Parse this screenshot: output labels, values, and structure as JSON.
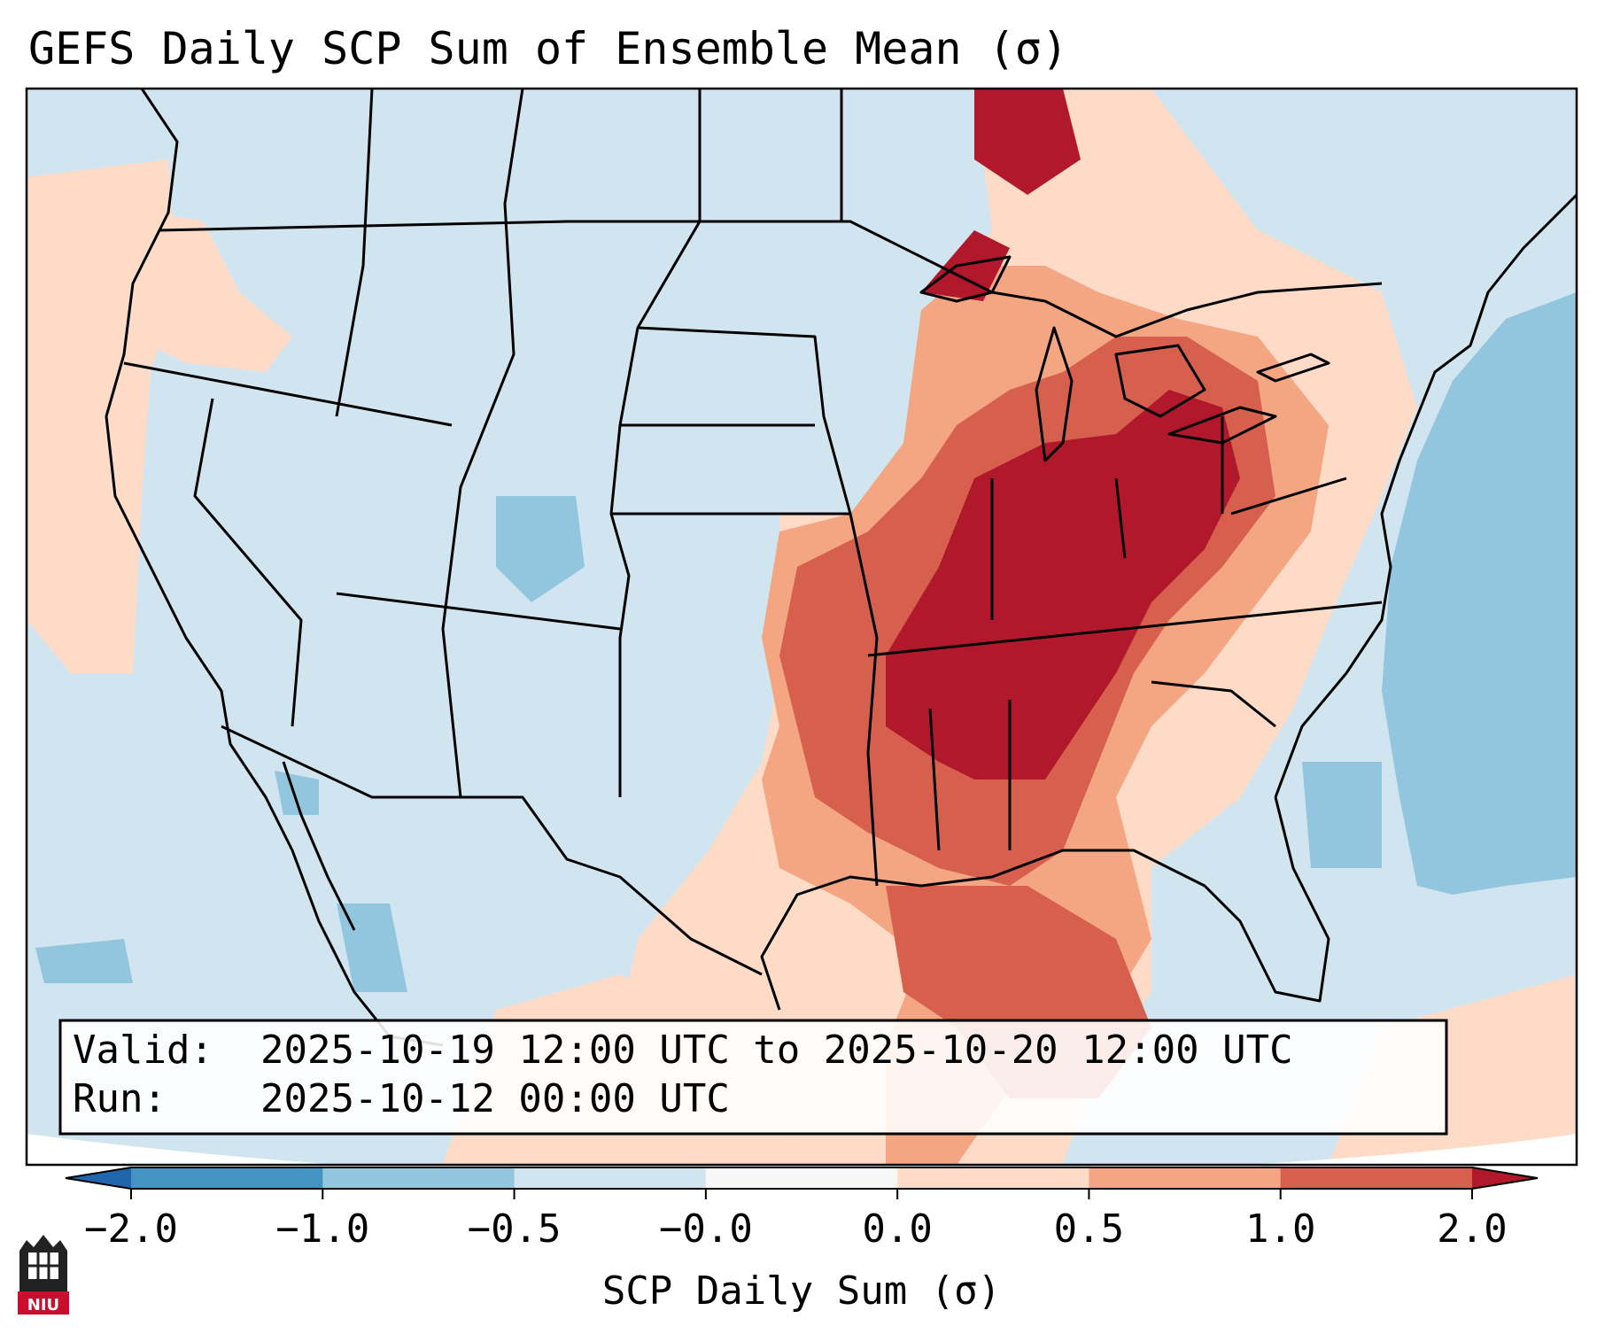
{
  "title": "GEFS Daily SCP Sum of Ensemble Mean (σ)",
  "info_box": {
    "valid_label": "Valid:",
    "valid_value": "2025-10-19 12:00 UTC to 2025-10-20 12:00 UTC",
    "run_label": "Run:",
    "run_value": "2025-10-12 00:00 UTC"
  },
  "colorbar": {
    "label": "SCP Daily Sum (σ)",
    "ticks": [
      "−2.0",
      "−1.0",
      "−0.5",
      "−0.0",
      "0.0",
      "0.5",
      "1.0",
      "2.0"
    ],
    "bins": [
      {
        "from": "-2.0",
        "to": "-1.0",
        "color": "#4393c3"
      },
      {
        "from": "-1.0",
        "to": "-0.5",
        "color": "#92c5de"
      },
      {
        "from": "-0.5",
        "to": "-0.0",
        "color": "#d1e5f0"
      },
      {
        "from": "-0.0",
        "to": "0.0",
        "color": "#f7f7f7"
      },
      {
        "from": "0.0",
        "to": "0.5",
        "color": "#fddbc7"
      },
      {
        "from": "0.5",
        "to": "1.0",
        "color": "#f4a582"
      },
      {
        "from": "1.0",
        "to": "2.0",
        "color": "#d6604d"
      }
    ],
    "extend_low_color": "#2166ac",
    "extend_high_color": "#b2182b"
  },
  "colors": {
    "background_field": "#d1e5f0",
    "ocean_negative": "#92c5de",
    "light_positive": "#fddbc7",
    "moderate_positive": "#f4a582",
    "strong_positive": "#d6604d",
    "extreme_positive": "#b2182b",
    "border": "#000000"
  },
  "logo": {
    "text": "NIU",
    "color": "#c8102e"
  }
}
